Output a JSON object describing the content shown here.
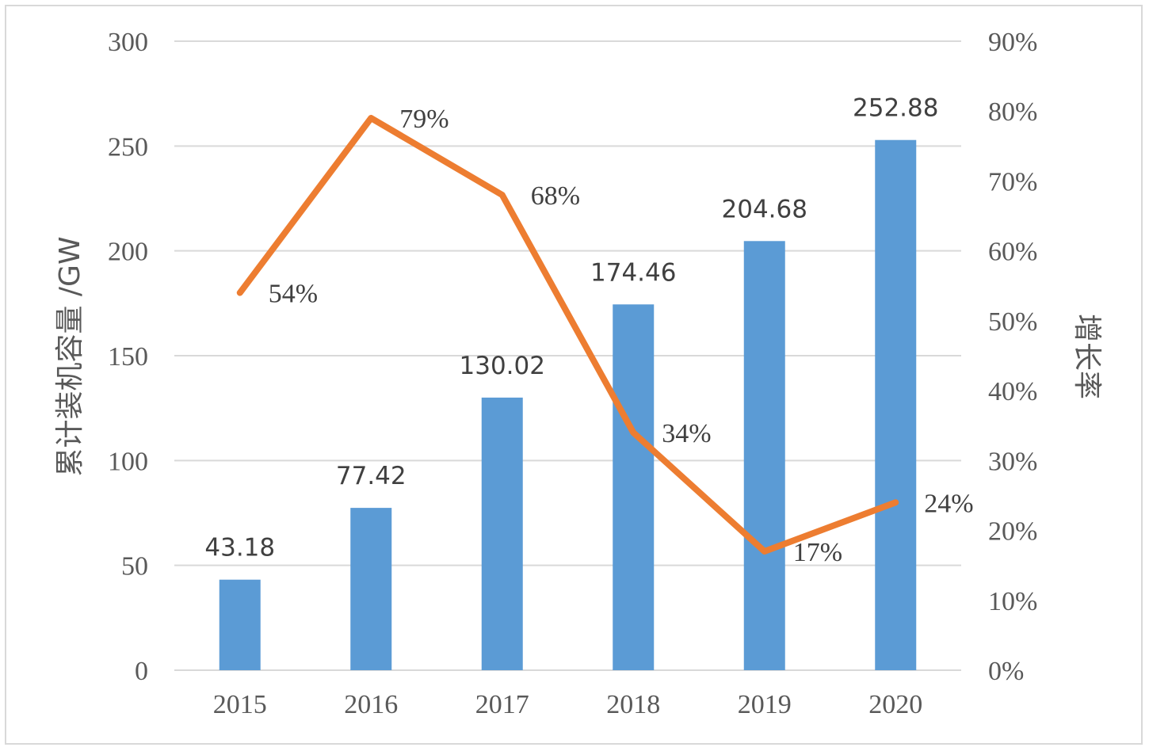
{
  "chart_data": {
    "type": "bar",
    "categories": [
      "2015",
      "2016",
      "2017",
      "2018",
      "2019",
      "2020"
    ],
    "series": [
      {
        "type": "bar",
        "axis": "left",
        "color": "#5b9bd5",
        "values": [
          43.18,
          77.42,
          130.02,
          174.46,
          204.68,
          252.88
        ],
        "labels": [
          "43.18",
          "77.42",
          "130.02",
          "174.46",
          "204.68",
          "252.88"
        ]
      },
      {
        "type": "line",
        "axis": "right",
        "color": "#ed7d31",
        "values": [
          54,
          79,
          68,
          34,
          17,
          24
        ],
        "labels": [
          "54%",
          "79%",
          "68%",
          "34%",
          "17%",
          "24%"
        ]
      }
    ],
    "ylabel": "累计装机容量 /GW",
    "y2label": "增长率",
    "ylim": [
      0,
      300
    ],
    "y2lim": [
      0,
      90
    ],
    "yticks": [
      "0",
      "50",
      "100",
      "150",
      "200",
      "250",
      "300"
    ],
    "y2ticks": [
      "0%",
      "10%",
      "20%",
      "30%",
      "40%",
      "50%",
      "60%",
      "70%",
      "80%",
      "90%"
    ],
    "grid": true,
    "gridColor": "#d9d9d9",
    "legend": "none"
  }
}
